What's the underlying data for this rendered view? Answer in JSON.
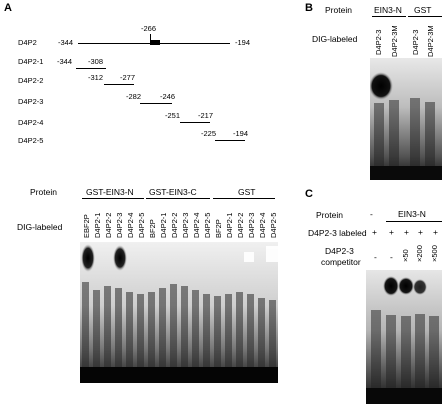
{
  "panelA": {
    "letter": "A",
    "map": {
      "rows": [
        {
          "name": "D4P2",
          "start": "-344",
          "end": "-194",
          "marker": "-266"
        },
        {
          "name": "D4P2-1",
          "start": "-344",
          "end": "-308"
        },
        {
          "name": "D4P2-2",
          "start": "-312",
          "end": "-277"
        },
        {
          "name": "D4P2-3",
          "start": "-282",
          "end": "-246"
        },
        {
          "name": "D4P2-4",
          "start": "-251",
          "end": "-217"
        },
        {
          "name": "D4P2-5",
          "start": "-225",
          "end": "-194"
        }
      ]
    },
    "gel": {
      "protein_label": "Protein",
      "dig_label": "DIG-labeled",
      "groups": [
        "GST-EIN3-N",
        "GST-EIN3-C",
        "GST"
      ],
      "lanes_group1": [
        "EBF2P",
        "D4P2-1",
        "D4P2-2",
        "D4P2-3",
        "D4P2-4",
        "D4P2-5"
      ],
      "lanes_group2": [
        "BF2P",
        "D4P2-1",
        "D4P2-2",
        "D4P2-3",
        "D4P2-4",
        "D4P2-5"
      ],
      "lanes_group3": [
        "BF2P",
        "D4P2-1",
        "D4P2-2",
        "D4P2-3",
        "D4P2-4",
        "D4P2-5"
      ]
    }
  },
  "panelB": {
    "letter": "B",
    "protein_label": "Protein",
    "dig_label": "DIG-labeled",
    "groups": [
      "EIN3-N",
      "GST"
    ],
    "lanes": [
      "D4P2-3",
      "D4P2-3M",
      "D4P2-3",
      "D4P2-3M"
    ]
  },
  "panelC": {
    "letter": "C",
    "protein_label": "Protein",
    "protein_values": [
      "-",
      "EIN3-N"
    ],
    "labeled_label": "D4P2-3 labeled",
    "labeled_values": [
      "+",
      "+",
      "+",
      "+",
      "+"
    ],
    "competitor_label": "D4P2-3 competitor",
    "competitor_line1": "D4P2-3",
    "competitor_line2": "competitor",
    "competitor_values": [
      "-",
      "-",
      "×50",
      "×200",
      "×500"
    ]
  }
}
